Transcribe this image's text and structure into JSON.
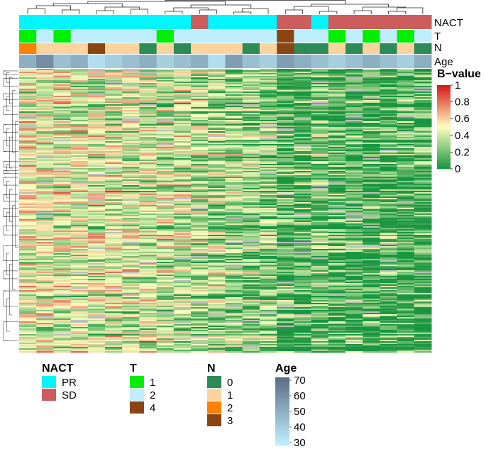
{
  "chart_data": {
    "type": "heatmap",
    "value_name": "B−value",
    "colorbar": {
      "title": "B−value",
      "ticks": [
        "1",
        "0.8",
        "0.6",
        "0.4",
        "0.2",
        "0"
      ],
      "low_color": "#1a9641",
      "mid_color": "#ffffbf",
      "high_color": "#d7191c"
    },
    "na_color": "#bebebe",
    "n_rows": 200,
    "n_samples": 24,
    "row_dendrogram": true,
    "column_dendrogram": true,
    "annotations": [
      {
        "name": "NACT",
        "levels": [
          "PR",
          "PR",
          "PR",
          "PR",
          "PR",
          "PR",
          "PR",
          "PR",
          "PR",
          "PR",
          "SD",
          "PR",
          "PR",
          "PR",
          "PR",
          "SD",
          "SD",
          "PR",
          "SD",
          "SD",
          "SD",
          "SD",
          "SD",
          "SD"
        ]
      },
      {
        "name": "T",
        "levels": [
          "1",
          "2",
          "1",
          "2",
          "2",
          "2",
          "2",
          "2",
          "1",
          "2",
          "2",
          "2",
          "2",
          "2",
          "2",
          "4",
          "2",
          "2",
          "1",
          "2",
          "1",
          "2",
          "1",
          "2"
        ]
      },
      {
        "name": "N",
        "levels": [
          "2",
          "1",
          "1",
          "1",
          "3",
          "1",
          "1",
          "0",
          "1",
          "0",
          "1",
          "1",
          "1",
          "0",
          "1",
          "3",
          "0",
          "0",
          "1",
          "0",
          "1",
          "0",
          "1",
          "0"
        ]
      },
      {
        "name": "Age",
        "values": [
          50,
          60,
          45,
          50,
          35,
          40,
          45,
          50,
          40,
          45,
          50,
          35,
          55,
          45,
          40,
          55,
          50,
          45,
          40,
          45,
          50,
          45,
          40,
          50
        ]
      }
    ],
    "legends": {
      "NACT": {
        "title": "NACT",
        "items": [
          {
            "label": "PR",
            "color": "#00f5ff"
          },
          {
            "label": "SD",
            "color": "#cd5c5c"
          }
        ]
      },
      "T": {
        "title": "T",
        "items": [
          {
            "label": "1",
            "color": "#00ee00"
          },
          {
            "label": "2",
            "color": "#bfefff"
          },
          {
            "label": "4",
            "color": "#8b4513"
          }
        ]
      },
      "N": {
        "title": "N",
        "items": [
          {
            "label": "0",
            "color": "#2e8b57"
          },
          {
            "label": "1",
            "color": "#fdd49e"
          },
          {
            "label": "2",
            "color": "#ff7f00"
          },
          {
            "label": "3",
            "color": "#8b4513"
          }
        ]
      },
      "Age": {
        "title": "Age",
        "ticks": [
          "70",
          "60",
          "50",
          "40",
          "30"
        ],
        "range": [
          30,
          70
        ],
        "low_color": "#bfefff",
        "high_color": "#5a6e84"
      }
    }
  }
}
